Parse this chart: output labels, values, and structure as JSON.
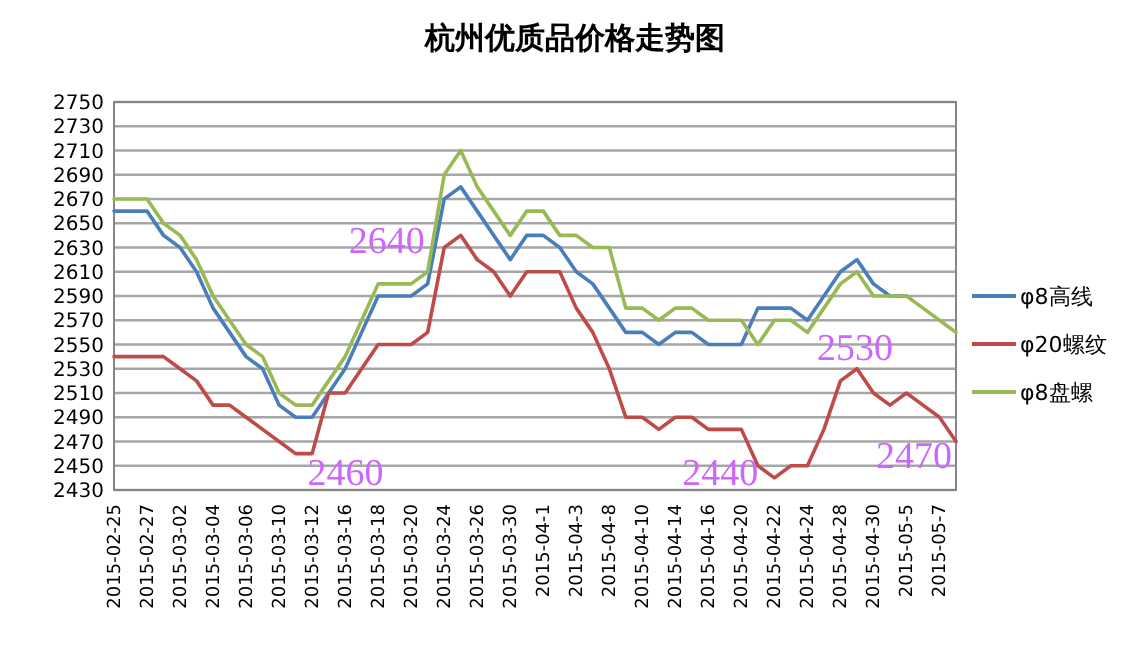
{
  "chart_data": {
    "type": "line",
    "title": "杭州优质品价格走势图",
    "categories": [
      "2015-02-25",
      null,
      "2015-02-27",
      null,
      "2015-03-02",
      null,
      "2015-03-04",
      null,
      "2015-03-06",
      null,
      "2015-03-10",
      null,
      "2015-03-12",
      null,
      "2015-03-16",
      null,
      "2015-03-18",
      null,
      "2015-03-20",
      null,
      "2015-03-24",
      null,
      "2015-03-26",
      null,
      "2015-03-30",
      null,
      "2015-04-1",
      null,
      "2015-04-3",
      null,
      "2015-04-8",
      null,
      "2015-04-10",
      null,
      "2015-04-14",
      null,
      "2015-04-16",
      null,
      "2015-04-20",
      null,
      "2015-04-22",
      null,
      "2015-04-24",
      null,
      "2015-04-28",
      null,
      "2015-04-30",
      null,
      "2015-05-5",
      null,
      "2015-05-7",
      null
    ],
    "series": [
      {
        "name": "φ8高线",
        "color": "#4a7ebb",
        "values": [
          2660,
          2660,
          2660,
          2640,
          2630,
          2610,
          2580,
          2560,
          2540,
          2530,
          2500,
          2490,
          2490,
          2510,
          2530,
          2560,
          2590,
          2590,
          2590,
          2600,
          2670,
          2680,
          2660,
          2640,
          2620,
          2640,
          2640,
          2630,
          2610,
          2600,
          2580,
          2560,
          2560,
          2550,
          2560,
          2560,
          2550,
          2550,
          2550,
          2580,
          2580,
          2580,
          2570,
          2590,
          2610,
          2620,
          2600,
          2590,
          2590,
          null,
          null,
          null
        ]
      },
      {
        "name": "φ20螺纹",
        "color": "#be4b48",
        "values": [
          2540,
          2540,
          2540,
          2540,
          2530,
          2520,
          2500,
          2500,
          2490,
          2480,
          2470,
          2460,
          2460,
          2510,
          2510,
          2530,
          2550,
          2550,
          2550,
          2560,
          2630,
          2640,
          2620,
          2610,
          2590,
          2610,
          2610,
          2610,
          2580,
          2560,
          2530,
          2490,
          2490,
          2480,
          2490,
          2490,
          2480,
          2480,
          2480,
          2450,
          2440,
          2450,
          2450,
          2480,
          2520,
          2530,
          2510,
          2500,
          2510,
          2500,
          2490,
          2470
        ]
      },
      {
        "name": "φ8盘螺",
        "color": "#98b954",
        "values": [
          2670,
          2670,
          2670,
          2650,
          2640,
          2620,
          2590,
          2570,
          2550,
          2540,
          2510,
          2500,
          2500,
          2520,
          2540,
          2570,
          2600,
          2600,
          2600,
          2610,
          2690,
          2710,
          2680,
          2660,
          2640,
          2660,
          2660,
          2640,
          2640,
          2630,
          2630,
          2580,
          2580,
          2570,
          2580,
          2580,
          2570,
          2570,
          2570,
          2550,
          2570,
          2570,
          2560,
          2580,
          2600,
          2610,
          2590,
          2590,
          2590,
          2580,
          2570,
          2560
        ]
      }
    ],
    "ylim": [
      2430,
      2750
    ],
    "yticks": [
      2430,
      2450,
      2470,
      2490,
      2510,
      2530,
      2550,
      2570,
      2590,
      2610,
      2630,
      2650,
      2670,
      2690,
      2710,
      2730,
      2750
    ],
    "grid": "y",
    "legend": "right",
    "marker": "none",
    "line_style": "solid",
    "annotations": [
      "2460",
      "2640",
      "2440",
      "2530",
      "2470"
    ]
  }
}
